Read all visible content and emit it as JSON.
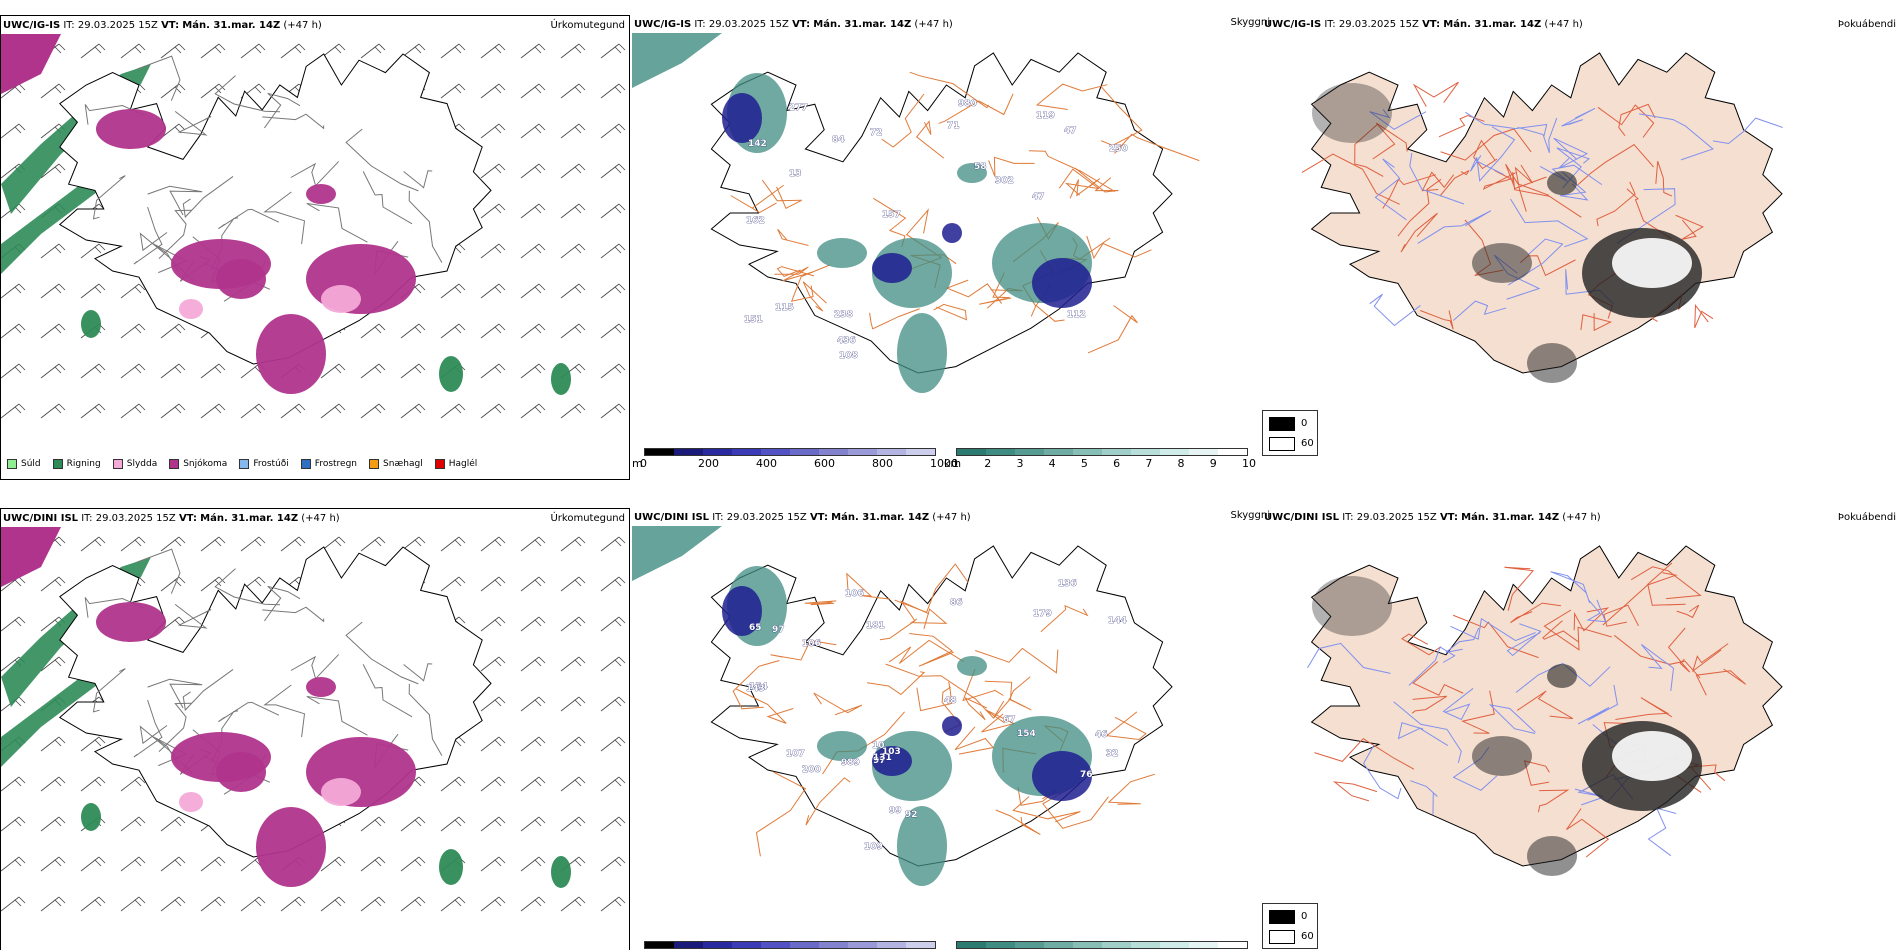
{
  "rows": [
    {
      "model": "UWC/IG-IS",
      "init_label": "IT:",
      "init_time": "29.03.2025 15Z",
      "valid_label": "VT:",
      "valid_time": "Mán. 31.mar. 14Z",
      "lead": "(+47 h)",
      "precip_title": "Úrkomutegund",
      "visibility_title": "Skyggni",
      "fog_title": "Þokuábendi",
      "vis_labels": [
        "71",
        "980",
        "250",
        "72",
        "436",
        "142",
        "277",
        "157",
        "58",
        "84",
        "108",
        "115",
        "151",
        "238",
        "119",
        "47",
        "302",
        "162",
        "47",
        "112",
        "13"
      ]
    },
    {
      "model": "UWC/DINI ISL",
      "init_label": "IT:",
      "init_time": "29.03.2025 15Z",
      "valid_label": "VT:",
      "valid_time": "Mán. 31.mar. 14Z",
      "lead": "(+47 h)",
      "precip_title": "Úrkomutegund",
      "visibility_title": "Skyggni",
      "fog_title": "Þokuábendi",
      "vis_labels": [
        "65",
        "107",
        "109",
        "67",
        "76",
        "154",
        "143",
        "179",
        "46",
        "181",
        "97",
        "99",
        "144",
        "106",
        "154",
        "989",
        "10",
        "106",
        "86",
        "32",
        "103",
        "200",
        "97",
        "131",
        "92",
        "136",
        "48"
      ]
    }
  ],
  "precip_legend": [
    {
      "label": "Súld",
      "color": "#90ee90"
    },
    {
      "label": "Rigning",
      "color": "#2e8b57"
    },
    {
      "label": "Slydda",
      "color": "#f4a9d8"
    },
    {
      "label": "Snjókoma",
      "color": "#b0348c"
    },
    {
      "label": "Frostúði",
      "color": "#87b7ef"
    },
    {
      "label": "Frostregn",
      "color": "#2f6fc4"
    },
    {
      "label": "Snæhagl",
      "color": "#f39c12"
    },
    {
      "label": "Haglél",
      "color": "#e00000"
    }
  ],
  "vis_m": {
    "unit": "m",
    "ticks": [
      "0",
      "200",
      "400",
      "600",
      "800",
      "1000"
    ],
    "colors": [
      "#000000",
      "#1a1a7a",
      "#2a2aa0",
      "#3b3bb8",
      "#5252c4",
      "#6a6ac8",
      "#8282cf",
      "#9a9ad8",
      "#b4b4e2",
      "#cdcdec"
    ]
  },
  "vis_km": {
    "unit": "km",
    "ticks": [
      "1",
      "2",
      "3",
      "4",
      "5",
      "6",
      "7",
      "8",
      "9",
      "10"
    ],
    "colors": [
      "#2c7b70",
      "#3f8c82",
      "#579c93",
      "#6fada4",
      "#87beb6",
      "#a0cec8",
      "#b8ded9",
      "#d0ece8",
      "#e6f5f3",
      "#ffffff"
    ]
  },
  "fog_legend": {
    "high": "0",
    "low": "60"
  },
  "colors": {
    "rain": "#2e8b57",
    "snow": "#b0348c",
    "sleet": "#f4a9d8",
    "vis_low": "#1e1e90",
    "vis_teal": "#3f8c82",
    "land_fog": "#f4dfd0",
    "roads": "#e07b39",
    "rivers": "#8090f0"
  }
}
